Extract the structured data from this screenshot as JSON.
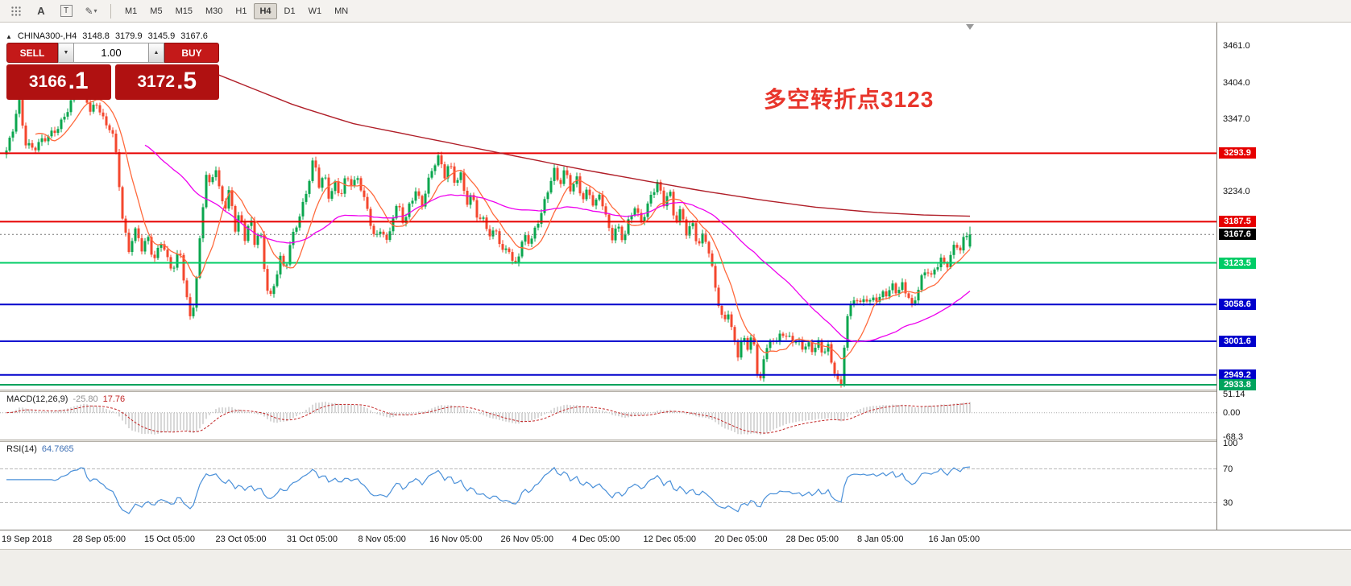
{
  "toolbar": {
    "icons": {
      "cursor": "A",
      "text": "T",
      "draw": "✎",
      "chevron": "▾"
    },
    "timeframes": [
      "M1",
      "M5",
      "M15",
      "M30",
      "H1",
      "H4",
      "D1",
      "W1",
      "MN"
    ],
    "active_timeframe": "H4"
  },
  "icons": {
    "collapse": "▲",
    "spinner_down": "▼",
    "spinner_up": "▲"
  },
  "symbol_header": {
    "symbol": "CHINA300-,H4",
    "open": "3148.8",
    "high": "3179.9",
    "low": "3145.9",
    "close": "3167.6"
  },
  "trade_panel": {
    "sell_label": "SELL",
    "buy_label": "BUY",
    "volume": "1.00",
    "sell_price": {
      "main": "3166",
      "frac": ".1"
    },
    "buy_price": {
      "main": "3172",
      "frac": ".5"
    }
  },
  "annotation": {
    "text": "多空转折点3123",
    "color": "#e8352b"
  },
  "ui_colors": {
    "trade_button_red": "#c41919",
    "trade_box_red": "#b01111",
    "toolbar_bg": "#f4f2ef"
  },
  "indicators": {
    "macd": {
      "label": "MACD(12,26,9)",
      "value_main": "-25.80",
      "value_signal": "17.76",
      "axis": [
        "51.14",
        "0.00",
        "-68.3"
      ]
    },
    "rsi": {
      "label": "RSI(14)",
      "value": "64.7665",
      "axis": [
        "100",
        "70",
        "30"
      ]
    }
  },
  "chart_data": {
    "type": "candlestick",
    "symbol": "CHINA300-",
    "timeframe": "H4",
    "last_bar_ohlc": {
      "open": 3148.8,
      "high": 3179.9,
      "low": 3145.9,
      "close": 3167.6
    },
    "current_price": 3167.6,
    "current_price_label": {
      "value": "3167.6",
      "bg": "#000000"
    },
    "price_axis": {
      "plain_ticks": [
        3461.0,
        3404.0,
        3347.0,
        3234.0
      ],
      "top_price": 3497.3,
      "bottom_price": 2926.3
    },
    "horizontal_lines": [
      {
        "price": 3293.9,
        "label": "3293.9",
        "color": "#e60000",
        "width": 2
      },
      {
        "price": 3187.5,
        "label": "3187.5",
        "color": "#e60000",
        "width": 2
      },
      {
        "price": 3123.5,
        "label": "3123.5",
        "color": "#00cc66",
        "width": 2
      },
      {
        "price": 3058.6,
        "label": "3058.6",
        "color": "#0000cc",
        "width": 2
      },
      {
        "price": 3001.6,
        "label": "3001.6",
        "color": "#0000cc",
        "width": 2
      },
      {
        "price": 2949.2,
        "label": "2949.2",
        "color": "#0000cc",
        "width": 2
      },
      {
        "price": 2933.8,
        "label": "2933.8",
        "color": "#00a35c",
        "width": 2
      }
    ],
    "time_labels": [
      "19 Sep 2018",
      "28 Sep 05:00",
      "15 Oct 05:00",
      "23 Oct 05:00",
      "31 Oct 05:00",
      "8 Nov 05:00",
      "16 Nov 05:00",
      "26 Nov 05:00",
      "4 Dec 05:00",
      "12 Dec 05:00",
      "20 Dec 05:00",
      "28 Dec 05:00",
      "8 Jan 05:00",
      "16 Jan 05:00"
    ],
    "num_candles": 300,
    "colors": {
      "up": "#0aa64e",
      "down": "#f4472e",
      "ma_fast": "#ff6a3d",
      "ma_mid": "#ee00ee",
      "ma_long": "#b01e28",
      "rsi": "#4a90d9",
      "macd_hist": "#b0b0b0",
      "macd_signal": "#c22525"
    },
    "price_path": [
      [
        0.0,
        3295
      ],
      [
        0.006,
        3325
      ],
      [
        0.013,
        3385
      ],
      [
        0.019,
        3315
      ],
      [
        0.028,
        3298
      ],
      [
        0.042,
        3318
      ],
      [
        0.056,
        3342
      ],
      [
        0.07,
        3378
      ],
      [
        0.079,
        3402
      ],
      [
        0.087,
        3362
      ],
      [
        0.094,
        3375
      ],
      [
        0.102,
        3338
      ],
      [
        0.109,
        3328
      ],
      [
        0.115,
        3282
      ],
      [
        0.12,
        3195
      ],
      [
        0.127,
        3148
      ],
      [
        0.135,
        3178
      ],
      [
        0.141,
        3138
      ],
      [
        0.147,
        3162
      ],
      [
        0.153,
        3122
      ],
      [
        0.16,
        3163
      ],
      [
        0.167,
        3132
      ],
      [
        0.173,
        3112
      ],
      [
        0.18,
        3142
      ],
      [
        0.186,
        3072
      ],
      [
        0.191,
        3038
      ],
      [
        0.196,
        3075
      ],
      [
        0.202,
        3188
      ],
      [
        0.207,
        3262
      ],
      [
        0.212,
        3238
      ],
      [
        0.216,
        3278
      ],
      [
        0.221,
        3232
      ],
      [
        0.227,
        3208
      ],
      [
        0.232,
        3242
      ],
      [
        0.237,
        3178
      ],
      [
        0.242,
        3203
      ],
      [
        0.248,
        3158
      ],
      [
        0.253,
        3192
      ],
      [
        0.258,
        3148
      ],
      [
        0.263,
        3178
      ],
      [
        0.268,
        3112
      ],
      [
        0.273,
        3068
      ],
      [
        0.278,
        3092
      ],
      [
        0.284,
        3132
      ],
      [
        0.289,
        3108
      ],
      [
        0.295,
        3152
      ],
      [
        0.301,
        3182
      ],
      [
        0.307,
        3212
      ],
      [
        0.313,
        3248
      ],
      [
        0.319,
        3288
      ],
      [
        0.325,
        3238
      ],
      [
        0.33,
        3258
      ],
      [
        0.335,
        3222
      ],
      [
        0.341,
        3248
      ],
      [
        0.347,
        3232
      ],
      [
        0.353,
        3262
      ],
      [
        0.359,
        3242
      ],
      [
        0.365,
        3252
      ],
      [
        0.371,
        3222
      ],
      [
        0.377,
        3192
      ],
      [
        0.383,
        3162
      ],
      [
        0.389,
        3182
      ],
      [
        0.395,
        3152
      ],
      [
        0.401,
        3192
      ],
      [
        0.407,
        3212
      ],
      [
        0.413,
        3182
      ],
      [
        0.419,
        3222
      ],
      [
        0.425,
        3238
      ],
      [
        0.431,
        3212
      ],
      [
        0.437,
        3242
      ],
      [
        0.443,
        3272
      ],
      [
        0.449,
        3288
      ],
      [
        0.455,
        3262
      ],
      [
        0.46,
        3282
      ],
      [
        0.466,
        3248
      ],
      [
        0.472,
        3258
      ],
      [
        0.478,
        3212
      ],
      [
        0.484,
        3228
      ],
      [
        0.49,
        3188
      ],
      [
        0.496,
        3198
      ],
      [
        0.502,
        3162
      ],
      [
        0.508,
        3178
      ],
      [
        0.514,
        3132
      ],
      [
        0.52,
        3152
      ],
      [
        0.526,
        3118
      ],
      [
        0.532,
        3142
      ],
      [
        0.538,
        3168
      ],
      [
        0.544,
        3152
      ],
      [
        0.55,
        3178
      ],
      [
        0.556,
        3202
      ],
      [
        0.562,
        3238
      ],
      [
        0.568,
        3272
      ],
      [
        0.574,
        3248
      ],
      [
        0.58,
        3268
      ],
      [
        0.586,
        3232
      ],
      [
        0.592,
        3252
      ],
      [
        0.598,
        3222
      ],
      [
        0.604,
        3242
      ],
      [
        0.61,
        3212
      ],
      [
        0.616,
        3232
      ],
      [
        0.622,
        3192
      ],
      [
        0.628,
        3158
      ],
      [
        0.634,
        3182
      ],
      [
        0.64,
        3162
      ],
      [
        0.646,
        3192
      ],
      [
        0.652,
        3212
      ],
      [
        0.658,
        3182
      ],
      [
        0.664,
        3202
      ],
      [
        0.67,
        3232
      ],
      [
        0.676,
        3252
      ],
      [
        0.682,
        3218
      ],
      [
        0.688,
        3238
      ],
      [
        0.694,
        3182
      ],
      [
        0.7,
        3202
      ],
      [
        0.706,
        3168
      ],
      [
        0.712,
        3188
      ],
      [
        0.718,
        3152
      ],
      [
        0.724,
        3172
      ],
      [
        0.729,
        3138
      ],
      [
        0.734,
        3098
      ],
      [
        0.739,
        3058
      ],
      [
        0.744,
        3028
      ],
      [
        0.749,
        3052
      ],
      [
        0.754,
        3012
      ],
      [
        0.759,
        2982
      ],
      [
        0.764,
        3008
      ],
      [
        0.769,
        2988
      ],
      [
        0.774,
        3012
      ],
      [
        0.779,
        2952
      ],
      [
        0.783,
        2948
      ],
      [
        0.788,
        2988
      ],
      [
        0.793,
        3012
      ],
      [
        0.798,
        2992
      ],
      [
        0.803,
        3018
      ],
      [
        0.808,
        2998
      ],
      [
        0.813,
        3012
      ],
      [
        0.818,
        2992
      ],
      [
        0.823,
        3008
      ],
      [
        0.828,
        2988
      ],
      [
        0.833,
        3002
      ],
      [
        0.838,
        2982
      ],
      [
        0.843,
        2998
      ],
      [
        0.848,
        2978
      ],
      [
        0.853,
        2992
      ],
      [
        0.858,
        2962
      ],
      [
        0.863,
        2940
      ],
      [
        0.866,
        2936
      ],
      [
        0.871,
        3022
      ],
      [
        0.875,
        3052
      ],
      [
        0.88,
        3068
      ],
      [
        0.885,
        3052
      ],
      [
        0.89,
        3072
      ],
      [
        0.895,
        3058
      ],
      [
        0.9,
        3078
      ],
      [
        0.905,
        3062
      ],
      [
        0.91,
        3082
      ],
      [
        0.915,
        3068
      ],
      [
        0.92,
        3088
      ],
      [
        0.925,
        3072
      ],
      [
        0.93,
        3092
      ],
      [
        0.935,
        3078
      ],
      [
        0.94,
        3058
      ],
      [
        0.945,
        3078
      ],
      [
        0.95,
        3098
      ],
      [
        0.955,
        3112
      ],
      [
        0.96,
        3098
      ],
      [
        0.965,
        3118
      ],
      [
        0.97,
        3132
      ],
      [
        0.975,
        3118
      ],
      [
        0.98,
        3138
      ],
      [
        0.985,
        3152
      ],
      [
        0.99,
        3142
      ],
      [
        0.995,
        3162
      ],
      [
        1.0,
        3167.6
      ]
    ],
    "long_ma_path": [
      [
        0.2,
        3428
      ],
      [
        0.25,
        3398
      ],
      [
        0.3,
        3368
      ],
      [
        0.36,
        3340
      ],
      [
        0.42,
        3322
      ],
      [
        0.48,
        3304
      ],
      [
        0.54,
        3286
      ],
      [
        0.6,
        3268
      ],
      [
        0.66,
        3252
      ],
      [
        0.72,
        3236
      ],
      [
        0.78,
        3222
      ],
      [
        0.84,
        3210
      ],
      [
        0.9,
        3202
      ],
      [
        0.95,
        3198
      ],
      [
        1.0,
        3196
      ]
    ]
  }
}
